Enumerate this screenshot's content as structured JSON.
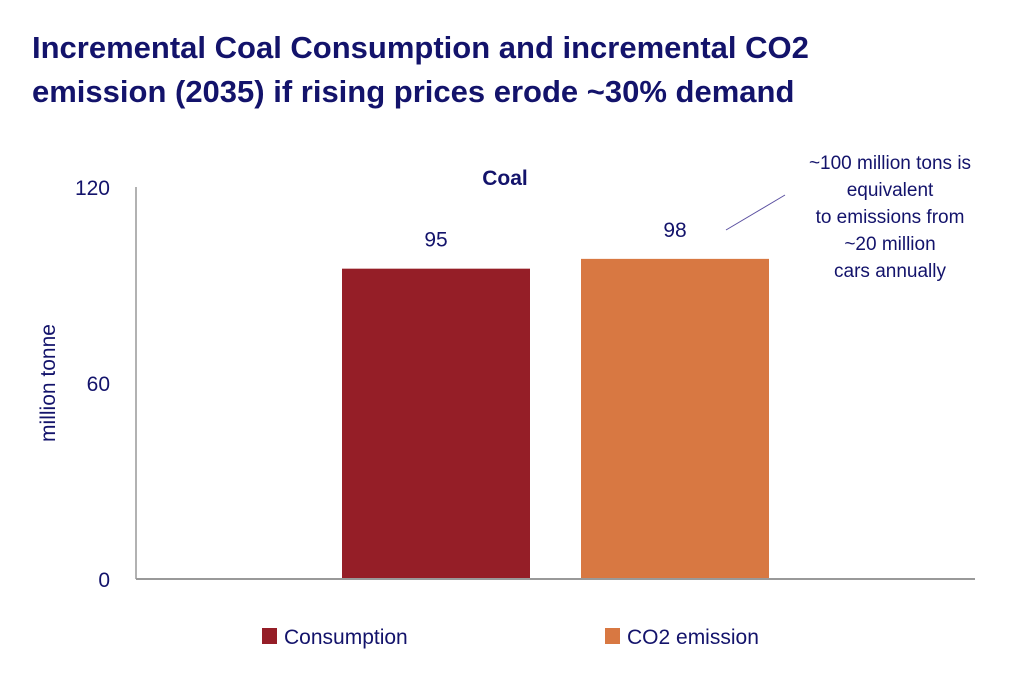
{
  "title_line1": "Incremental Coal Consumption and incremental CO2",
  "title_line2": "emission (2035) if rising prices erode ~30% demand",
  "annotation": [
    "~100 million tons is",
    "equivalent",
    "to emissions from",
    "~20 million",
    "cars annually"
  ],
  "chart_data": {
    "type": "bar",
    "title": "Coal",
    "categories": [
      "Coal"
    ],
    "series": [
      {
        "name": "Consumption",
        "values": [
          95
        ],
        "color": "#951e27"
      },
      {
        "name": "CO2 emission",
        "values": [
          98
        ],
        "color": "#d87842"
      }
    ],
    "ylabel": "million tonne",
    "ylim": [
      0,
      120
    ],
    "yticks": [
      "0",
      "60",
      "120"
    ],
    "grid": false,
    "legend": "bottom",
    "data_labels": [
      "95",
      "98"
    ]
  }
}
